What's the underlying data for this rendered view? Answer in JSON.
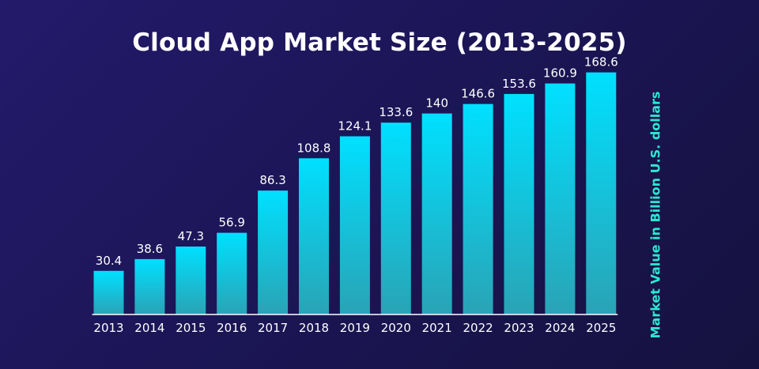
{
  "chart_data": {
    "type": "bar",
    "title": "Cloud App Market Size (2013-2025)",
    "xlabel": "",
    "ylabel": "Market Value in Billion U.S. dollars",
    "categories": [
      "2013",
      "2014",
      "2015",
      "2016",
      "2017",
      "2018",
      "2019",
      "2020",
      "2021",
      "2022",
      "2023",
      "2024",
      "2025"
    ],
    "values": [
      30.4,
      38.6,
      47.3,
      56.9,
      86.3,
      108.8,
      124.1,
      133.6,
      140,
      146.6,
      153.6,
      160.9,
      168.6
    ],
    "value_labels": [
      "30.4",
      "38.6",
      "47.3",
      "56.9",
      "86.3",
      "108.8",
      "124.1",
      "133.6",
      "140",
      "146.6",
      "153.6",
      "160.9",
      "168.6"
    ],
    "ylim": [
      0,
      186
    ],
    "grid": false,
    "colors": {
      "bar_top": "#00e0ff",
      "bar_bottom": "#2aa3b5",
      "baseline": "#ffffff",
      "ylabel": "#2fe6d2"
    }
  }
}
